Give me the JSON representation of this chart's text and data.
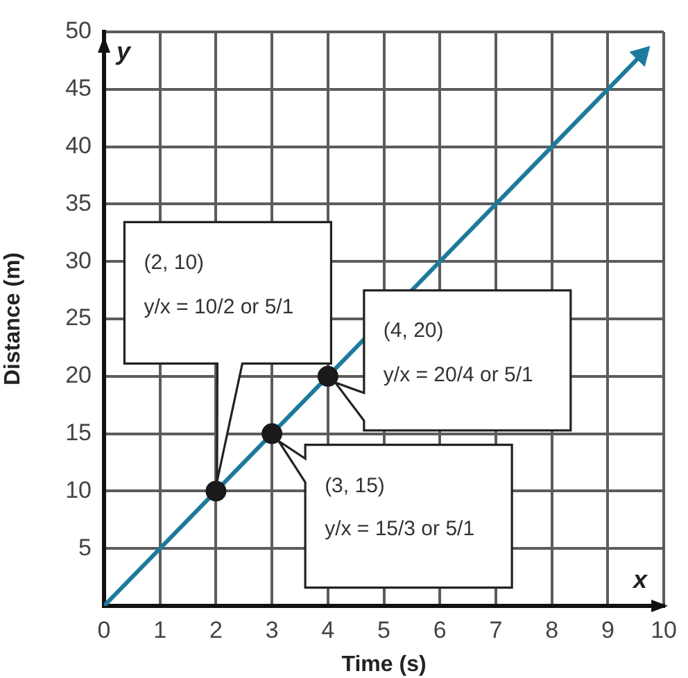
{
  "chart_data": {
    "type": "line",
    "xlabel": "Time (s)",
    "ylabel": "Distance (m)",
    "xlim": [
      0,
      10
    ],
    "xticks": [
      0,
      1,
      2,
      3,
      4,
      5,
      6,
      7,
      8,
      9,
      10
    ],
    "ylim": [
      0,
      50
    ],
    "yticks": [
      5,
      10,
      15,
      20,
      25,
      30,
      35,
      40,
      45,
      50
    ],
    "grid": true,
    "legend": false,
    "series": [
      {
        "color": "#1d7a9c",
        "x": [
          0,
          9.6
        ],
        "values": [
          0,
          48
        ]
      },
      {
        "type": "scatter",
        "color": "#1a1a1a",
        "marker": "circle",
        "x": [
          2,
          3,
          4
        ],
        "values": [
          10,
          15,
          20
        ]
      }
    ],
    "annotations": [
      "(2, 10)\ny/x = 10/2 or 5/1",
      "(3, 15)\ny/x = 15/3 or 5/1",
      "(4, 20)\ny/x = 20/4 or 5/1",
      "x",
      "y"
    ]
  }
}
